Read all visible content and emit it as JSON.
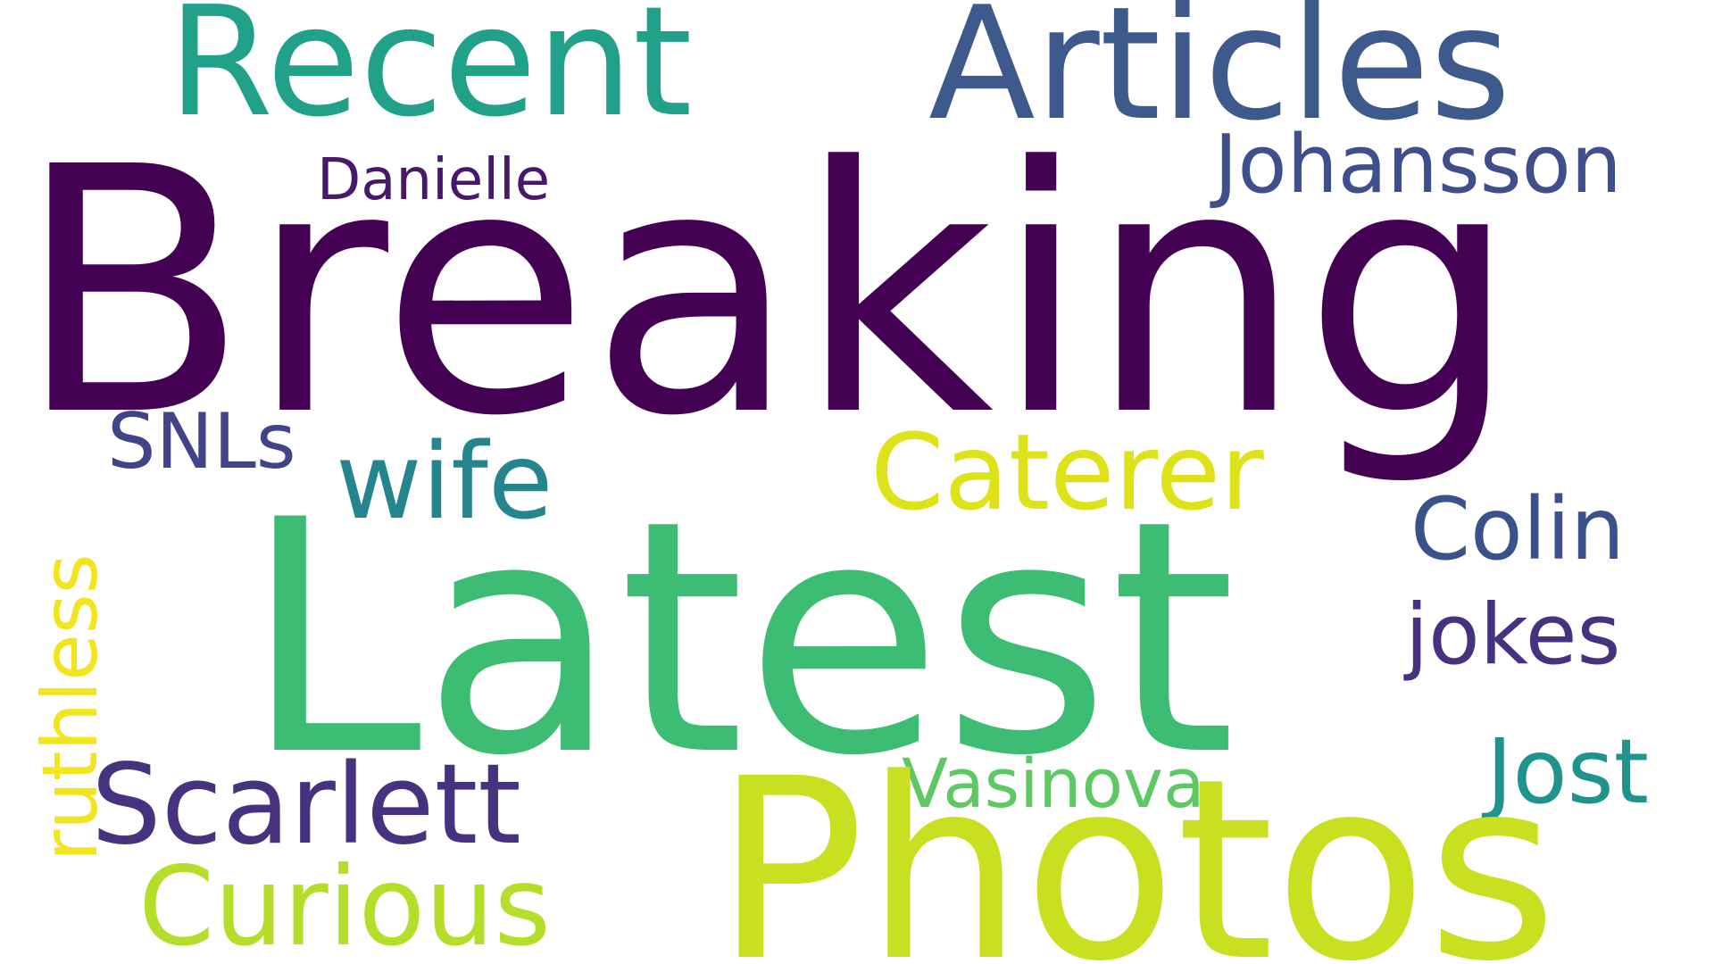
{
  "words": {
    "breaking": {
      "text": "Breaking",
      "color": "#440154"
    },
    "latest": {
      "text": "Latest",
      "color": "#3dbc74"
    },
    "photos": {
      "text": "Photos",
      "color": "#c8e020"
    },
    "recent": {
      "text": "Recent",
      "color": "#21a18a"
    },
    "articles": {
      "text": "Articles",
      "color": "#3e5a8c"
    },
    "johansson": {
      "text": "Johansson",
      "color": "#3f4f8b"
    },
    "danielle": {
      "text": "Danielle",
      "color": "#48186a"
    },
    "snls": {
      "text": "SNLs",
      "color": "#414487"
    },
    "wife": {
      "text": "wife",
      "color": "#25858e"
    },
    "caterer": {
      "text": "Caterer",
      "color": "#dde318"
    },
    "colin": {
      "text": "Colin",
      "color": "#3b518b"
    },
    "jokes": {
      "text": "jokes",
      "color": "#46327e"
    },
    "jost": {
      "text": "Jost",
      "color": "#1f948c"
    },
    "vasinova": {
      "text": "Vasinova",
      "color": "#5ec962"
    },
    "scarlett": {
      "text": "Scarlett",
      "color": "#46327e"
    },
    "curious": {
      "text": "Curious",
      "color": "#b5de2b"
    },
    "ruthless": {
      "text": "ruthless",
      "color": "#f2e51d"
    }
  }
}
